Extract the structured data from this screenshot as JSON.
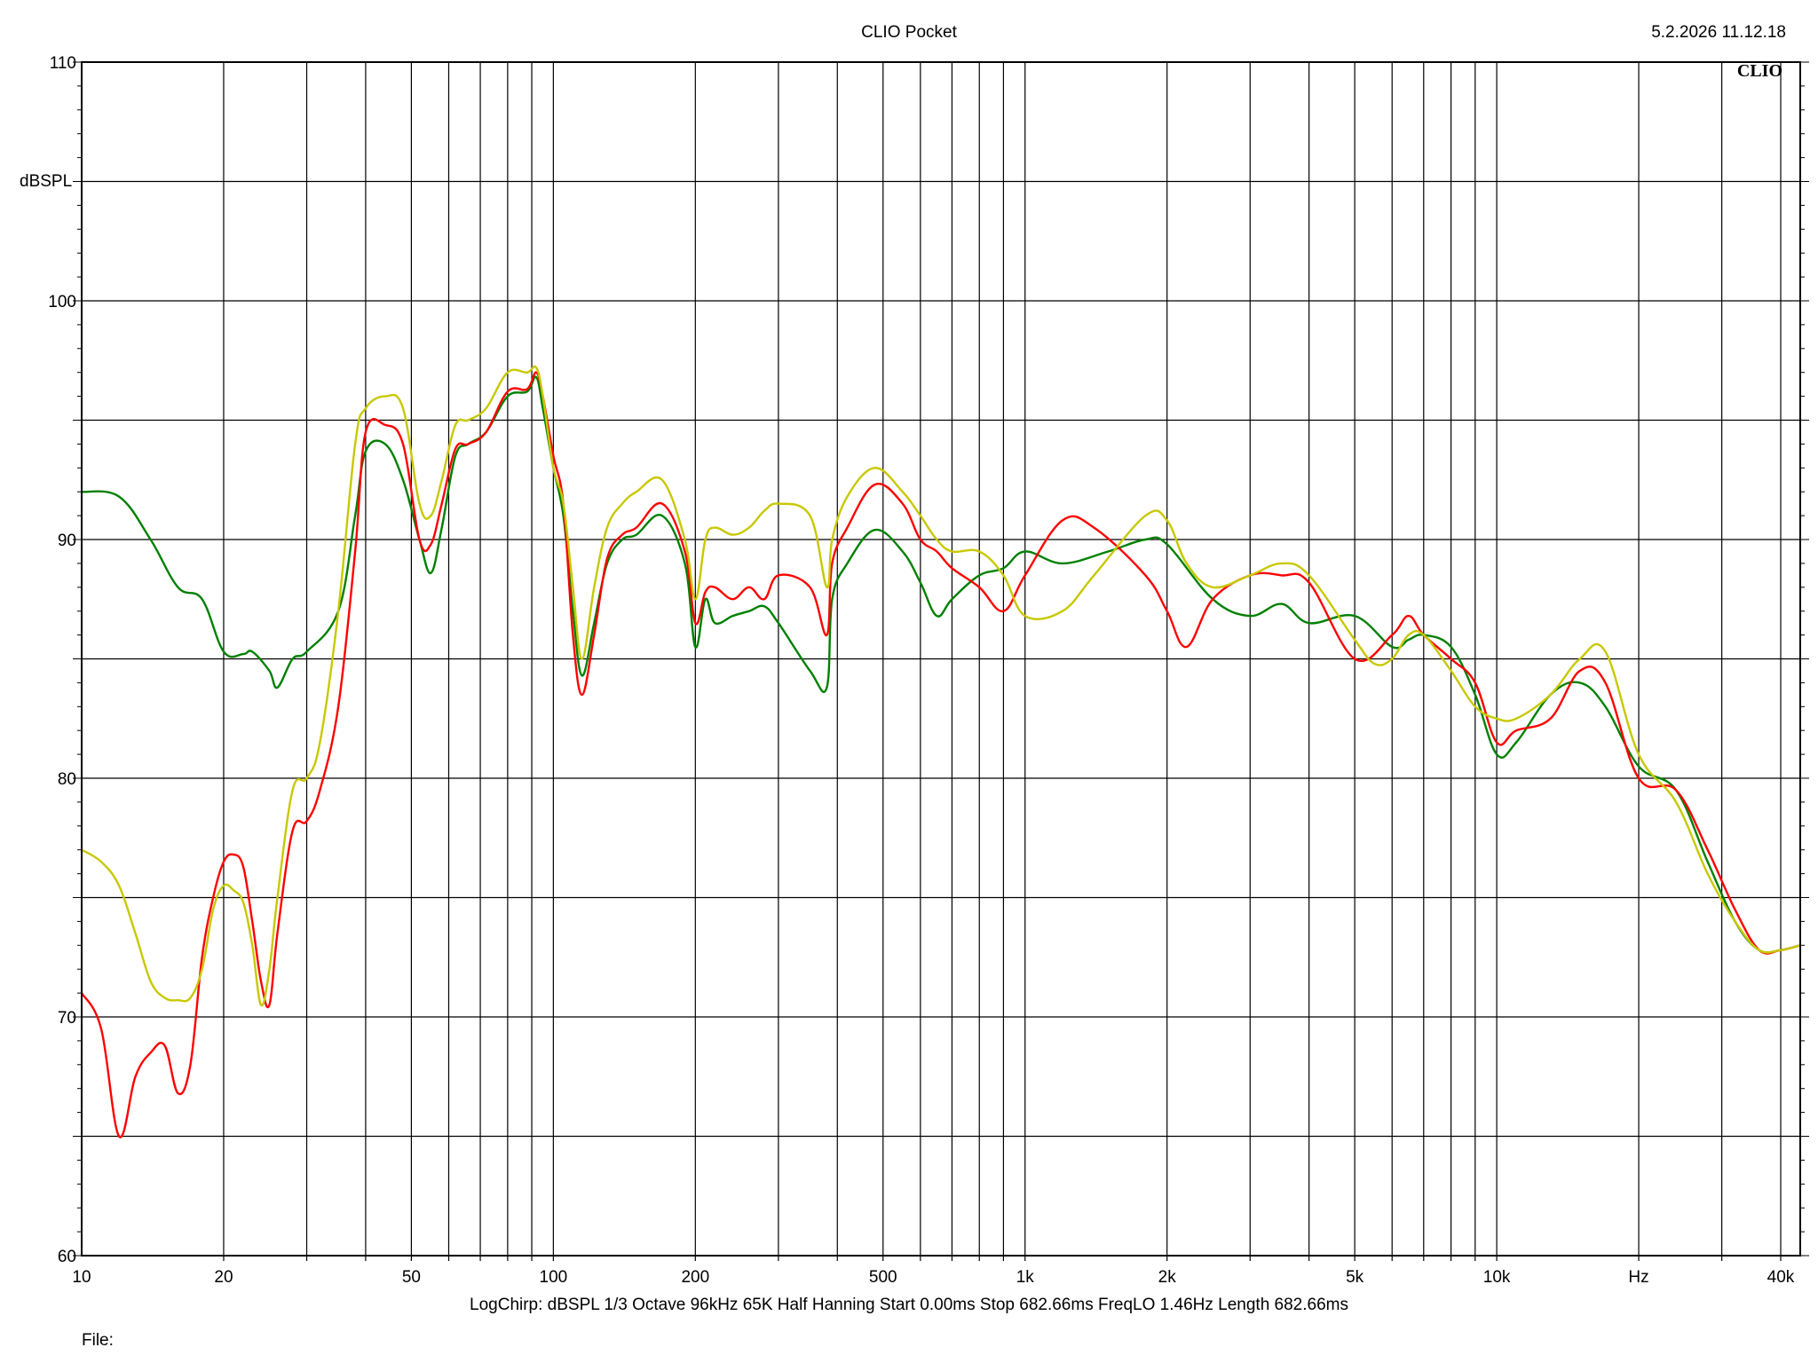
{
  "header": {
    "title": "CLIO Pocket",
    "timestamp": "5.2.2026 11.12.18",
    "brand": "CLIO"
  },
  "footer": {
    "settings": "LogChirp:  dBSPL   1/3 Octave   96kHz   65K   Half Hanning   Start 0.00ms    Stop 682.66ms    FreqLO 1.46Hz    Length 682.66ms",
    "file_label": "File:"
  },
  "colors": {
    "grid": "#000000",
    "background": "#ffffff",
    "red": "#ff0000",
    "green": "#008000",
    "yellow": "#c8c800"
  },
  "chart_data": {
    "type": "line",
    "title": "CLIO Pocket",
    "ylabel": "dBSPL",
    "xlabel": "Hz",
    "xscale": "log",
    "xlim": [
      10,
      44000
    ],
    "ylim": [
      60,
      110
    ],
    "grid": true,
    "y_ticks": [
      "60",
      "70",
      "80",
      "90",
      "100",
      "110"
    ],
    "x_ticks": [
      {
        "value": 10,
        "label": "10"
      },
      {
        "value": 20,
        "label": "20"
      },
      {
        "value": 50,
        "label": "50"
      },
      {
        "value": 100,
        "label": "100"
      },
      {
        "value": 200,
        "label": "200"
      },
      {
        "value": 500,
        "label": "500"
      },
      {
        "value": 1000,
        "label": "1k"
      },
      {
        "value": 2000,
        "label": "2k"
      },
      {
        "value": 5000,
        "label": "5k"
      },
      {
        "value": 10000,
        "label": "10k"
      },
      {
        "value": 20000,
        "label": "Hz"
      },
      {
        "value": 40000,
        "label": "40k"
      }
    ],
    "series": [
      {
        "color": "#008000",
        "x": [
          10,
          12,
          14,
          16,
          18,
          20,
          22,
          23,
          25,
          26,
          28,
          30,
          35,
          38,
          40,
          44,
          48,
          52,
          55,
          58,
          62,
          66,
          72,
          80,
          88,
          92,
          95,
          100,
          105,
          110,
          115,
          122,
          130,
          140,
          150,
          170,
          190,
          200,
          210,
          220,
          240,
          260,
          280,
          300,
          350,
          380,
          390,
          420,
          480,
          550,
          600,
          650,
          700,
          800,
          900,
          1000,
          1200,
          1500,
          1800,
          2000,
          2500,
          3000,
          3500,
          4000,
          5000,
          6000,
          6500,
          7000,
          8000,
          9000,
          10000,
          11000,
          13000,
          15000,
          17000,
          20000,
          24000,
          28000,
          32000,
          36000,
          40000,
          44000
        ],
        "y": [
          92.0,
          91.8,
          90.0,
          88.0,
          87.5,
          85.3,
          85.2,
          85.3,
          84.5,
          83.8,
          85.0,
          85.3,
          87.0,
          91.0,
          93.7,
          94.0,
          92.5,
          90.0,
          88.6,
          90.5,
          93.5,
          94.0,
          94.5,
          96.0,
          96.2,
          96.8,
          95.5,
          93.0,
          91.0,
          87.0,
          84.3,
          86.5,
          89.0,
          90.0,
          90.2,
          91.0,
          89.0,
          85.5,
          87.5,
          86.5,
          86.8,
          87.0,
          87.2,
          86.5,
          84.5,
          83.8,
          87.5,
          89.0,
          90.4,
          89.5,
          88.2,
          86.8,
          87.5,
          88.5,
          88.8,
          89.5,
          89.0,
          89.5,
          90.0,
          89.8,
          87.5,
          86.8,
          87.3,
          86.5,
          86.8,
          85.5,
          85.8,
          86.0,
          85.5,
          83.5,
          81.0,
          81.5,
          83.5,
          84.0,
          83.0,
          80.5,
          79.5,
          76.5,
          74.0,
          72.8,
          72.8,
          73.0
        ]
      },
      {
        "color": "#ff0000",
        "x": [
          10,
          11,
          12,
          13,
          14,
          15,
          16,
          17,
          18,
          19,
          20,
          21,
          22,
          23,
          24,
          25,
          26,
          28,
          30,
          32,
          35,
          38,
          40,
          44,
          48,
          52,
          55,
          58,
          62,
          66,
          72,
          80,
          88,
          92,
          95,
          100,
          105,
          110,
          115,
          122,
          130,
          140,
          150,
          170,
          190,
          200,
          210,
          220,
          240,
          260,
          280,
          300,
          350,
          380,
          390,
          420,
          480,
          550,
          600,
          650,
          700,
          800,
          900,
          1000,
          1200,
          1400,
          1800,
          2000,
          2200,
          2500,
          3000,
          3500,
          4000,
          5000,
          6000,
          6500,
          7000,
          8000,
          9000,
          10000,
          11000,
          13000,
          15000,
          17000,
          20000,
          24000,
          28000,
          32000,
          36000,
          40000,
          44000
        ],
        "y": [
          71.0,
          69.5,
          65.0,
          67.5,
          68.5,
          68.8,
          66.8,
          68.0,
          72.5,
          75.0,
          76.5,
          76.8,
          76.3,
          74.0,
          71.5,
          70.5,
          73.5,
          77.8,
          78.2,
          79.5,
          83.0,
          89.5,
          94.5,
          94.8,
          94.0,
          90.0,
          89.8,
          91.5,
          93.8,
          94.0,
          94.5,
          96.2,
          96.3,
          97.0,
          96.0,
          93.5,
          91.5,
          86.0,
          83.5,
          86.0,
          89.2,
          90.2,
          90.5,
          91.5,
          89.5,
          86.5,
          87.8,
          88.0,
          87.5,
          88.0,
          87.5,
          88.5,
          88.0,
          86.0,
          89.0,
          90.5,
          92.3,
          91.5,
          90.0,
          89.5,
          88.8,
          88.0,
          87.0,
          88.5,
          90.8,
          90.5,
          88.5,
          87.0,
          85.5,
          87.5,
          88.5,
          88.5,
          88.2,
          85.0,
          86.0,
          86.8,
          86.0,
          85.0,
          84.0,
          81.5,
          82.0,
          82.5,
          84.5,
          84.0,
          80.0,
          79.5,
          77.0,
          74.5,
          72.8,
          72.8,
          73.0
        ]
      },
      {
        "color": "#c8c800",
        "x": [
          10,
          11,
          12,
          13,
          14,
          15,
          16,
          17,
          18,
          19,
          20,
          21,
          22,
          23,
          24,
          25,
          26,
          28,
          30,
          32,
          35,
          38,
          40,
          44,
          48,
          52,
          55,
          58,
          62,
          66,
          72,
          80,
          88,
          92,
          95,
          100,
          105,
          110,
          115,
          122,
          130,
          140,
          150,
          170,
          190,
          200,
          210,
          220,
          240,
          260,
          280,
          300,
          350,
          380,
          390,
          420,
          480,
          550,
          600,
          650,
          700,
          800,
          900,
          1000,
          1200,
          1400,
          1800,
          2000,
          2200,
          2500,
          3000,
          3500,
          4000,
          5000,
          5500,
          6000,
          6500,
          7000,
          8000,
          9000,
          10000,
          11000,
          13000,
          15000,
          17000,
          20000,
          24000,
          28000,
          32000,
          36000,
          40000,
          44000
        ],
        "y": [
          77.0,
          76.5,
          75.5,
          73.5,
          71.5,
          70.8,
          70.7,
          70.8,
          72.0,
          74.5,
          75.5,
          75.3,
          74.8,
          73.0,
          70.5,
          72.0,
          75.0,
          79.5,
          80.0,
          81.5,
          87.0,
          94.0,
          95.5,
          96.0,
          95.5,
          91.5,
          91.0,
          92.5,
          94.8,
          95.0,
          95.5,
          97.0,
          97.0,
          97.2,
          96.0,
          93.0,
          91.5,
          88.0,
          85.0,
          88.0,
          90.5,
          91.5,
          92.0,
          92.5,
          90.0,
          87.5,
          90.0,
          90.5,
          90.2,
          90.5,
          91.2,
          91.5,
          91.0,
          88.0,
          90.0,
          91.8,
          93.0,
          92.0,
          91.0,
          90.0,
          89.5,
          89.5,
          88.5,
          86.8,
          87.0,
          88.5,
          91.0,
          90.8,
          89.0,
          88.0,
          88.5,
          89.0,
          88.5,
          85.8,
          84.8,
          85.0,
          86.0,
          86.0,
          84.5,
          83.0,
          82.5,
          82.5,
          83.5,
          85.0,
          85.3,
          81.0,
          79.0,
          76.0,
          74.0,
          72.8,
          72.8,
          73.0
        ]
      }
    ]
  }
}
